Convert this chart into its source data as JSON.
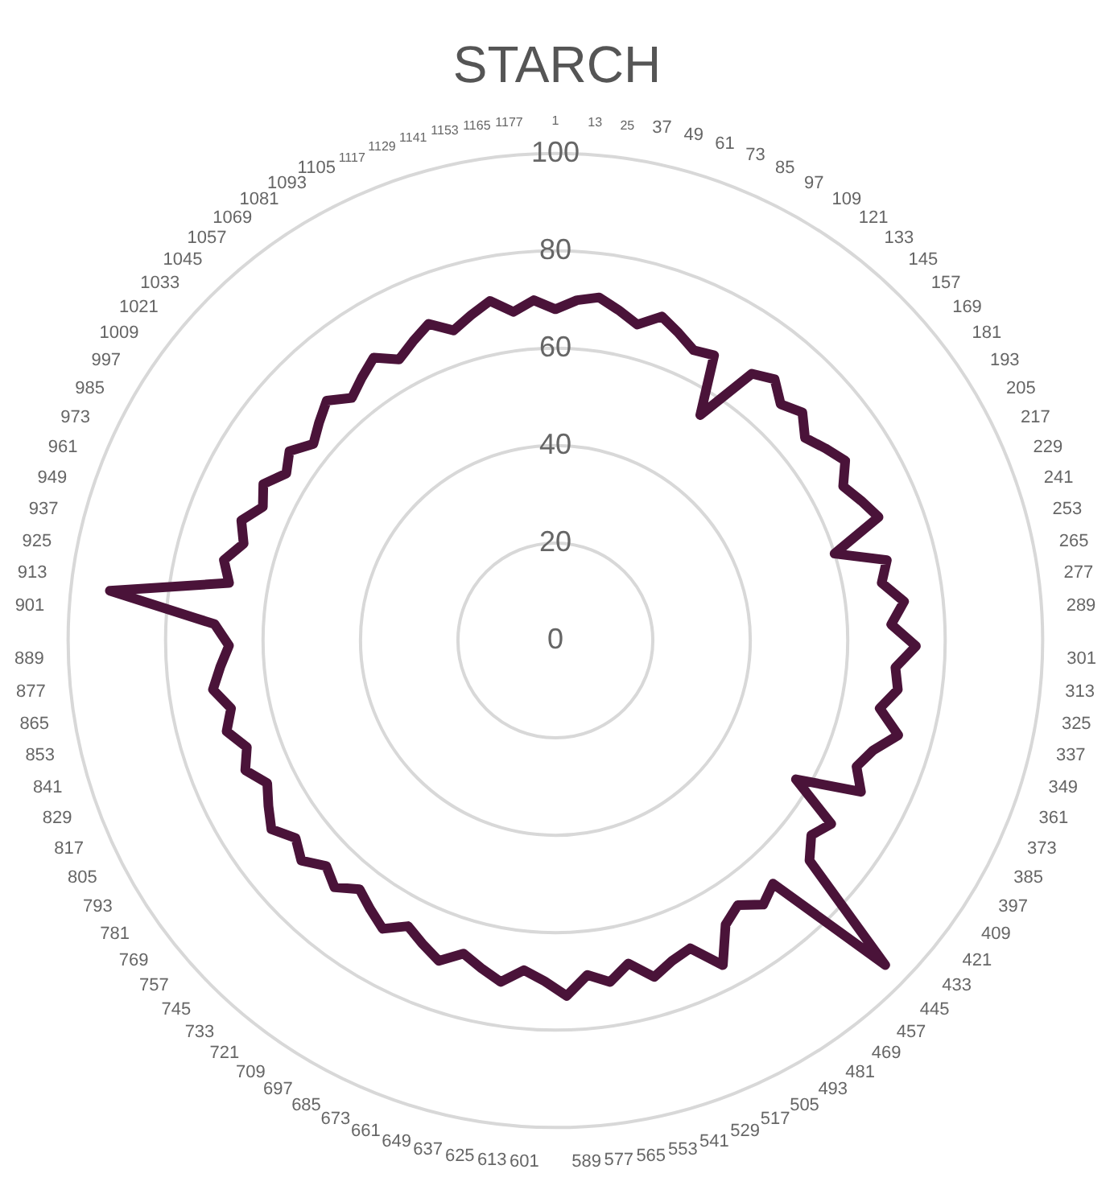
{
  "chart_data": {
    "type": "radar",
    "title": "STARCH",
    "categories": [
      "1",
      "13",
      "25",
      "37",
      "49",
      "61",
      "73",
      "85",
      "97",
      "109",
      "121",
      "133",
      "145",
      "157",
      "169",
      "181",
      "193",
      "205",
      "217",
      "229",
      "241",
      "253",
      "265",
      "277",
      "289",
      "301",
      "313",
      "325",
      "337",
      "349",
      "361",
      "373",
      "385",
      "397",
      "409",
      "421",
      "433",
      "445",
      "457",
      "469",
      "481",
      "493",
      "505",
      "517",
      "529",
      "541",
      "553",
      "565",
      "577",
      "589",
      "601",
      "613",
      "625",
      "637",
      "649",
      "661",
      "673",
      "685",
      "697",
      "709",
      "721",
      "733",
      "745",
      "757",
      "769",
      "781",
      "793",
      "805",
      "817",
      "829",
      "841",
      "853",
      "865",
      "877",
      "889",
      "901",
      "913",
      "925",
      "937",
      "949",
      "961",
      "973",
      "985",
      "997",
      "1009",
      "1021",
      "1033",
      "1045",
      "1057",
      "1069",
      "1081",
      "1093",
      "1105",
      "1117",
      "1129",
      "1141",
      "1153",
      "1165",
      "1177"
    ],
    "series": [
      {
        "color": "#4a1339",
        "values": [
          68,
          70,
          71,
          69,
          67,
          70,
          68,
          66,
          67,
          55,
          68,
          70,
          67,
          69,
          66,
          68,
          70,
          67,
          69,
          71,
          60,
          70,
          68,
          72,
          69,
          74,
          70,
          71,
          68,
          73,
          69,
          67,
          70,
          57,
          68,
          66,
          69,
          95,
          67,
          69,
          66,
          68,
          75,
          69,
          70,
          72,
          68,
          71,
          69,
          73,
          70,
          68,
          71,
          69,
          67,
          70,
          68,
          66,
          69,
          67,
          65,
          68,
          66,
          69,
          67,
          70,
          68,
          66,
          69,
          67,
          70,
          68,
          71,
          69,
          67,
          70,
          92,
          68,
          70,
          67,
          69,
          66,
          68,
          65,
          67,
          64,
          66,
          68,
          65,
          67,
          69,
          66,
          68,
          70,
          67,
          69,
          71,
          68,
          70
        ]
      }
    ],
    "ylim": [
      0,
      100
    ],
    "yticks": [
      0,
      20,
      40,
      60,
      80,
      100
    ],
    "grid": true,
    "marker": "none"
  }
}
